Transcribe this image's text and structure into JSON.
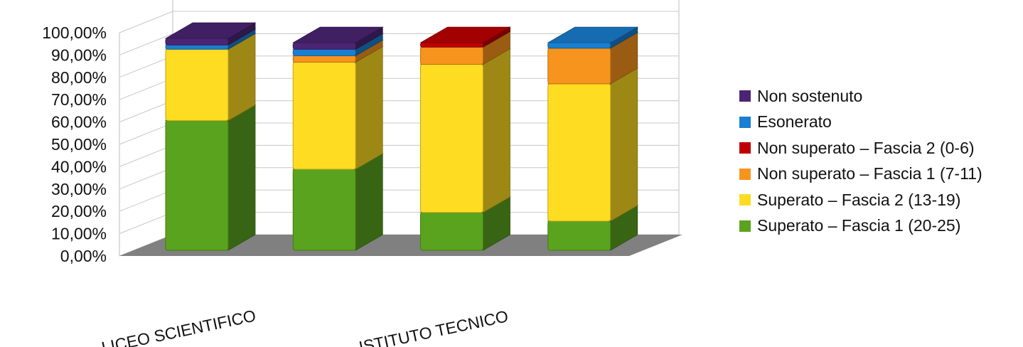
{
  "chart_data": {
    "type": "bar",
    "stacked": true,
    "style": "3d",
    "categories": [
      "LICEO SCIENTIFICO",
      "",
      "ISTITUTO TECNICO",
      ""
    ],
    "y_tick_labels": [
      "0,00%",
      "10,00%",
      "20,00%",
      "30,00%",
      "40,00%",
      "50,00%",
      "60,00%",
      "70,00%",
      "80,00%",
      "90,00%",
      "100,00%"
    ],
    "ylim": [
      0,
      100
    ],
    "grid": true,
    "legend_position": "right",
    "series": [
      {
        "name": "Superato – Fascia 1 (20-25)",
        "color": "#5aa31e",
        "values": [
          60.0,
          37.5,
          17.5,
          13.5
        ]
      },
      {
        "name": "Superato – Fascia 2 (13-19)",
        "color": "#fddc22",
        "values": [
          33.0,
          49.5,
          68.5,
          63.5
        ]
      },
      {
        "name": "Non superato – Fascia 1 (7-11)",
        "color": "#f7941d",
        "values": [
          0.0,
          3.0,
          8.0,
          16.5
        ]
      },
      {
        "name": "Non superato – Fascia 2 (0-6)",
        "color": "#c00000",
        "values": [
          0.0,
          0.0,
          2.0,
          0.0
        ]
      },
      {
        "name": "Esonerato",
        "color": "#1a7fd0",
        "values": [
          2.0,
          3.0,
          0.0,
          2.5
        ]
      },
      {
        "name": "Non sostenuto",
        "color": "#4b2574",
        "values": [
          3.0,
          3.0,
          0.0,
          0.0
        ]
      }
    ],
    "legend_order": [
      5,
      4,
      3,
      2,
      1,
      0
    ]
  }
}
